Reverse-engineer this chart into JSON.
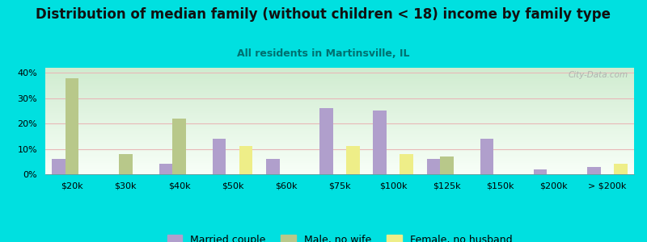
{
  "title": "Distribution of median family (without children < 18) income by family type",
  "subtitle": "All residents in Martinsville, IL",
  "categories": [
    "$20k",
    "$30k",
    "$40k",
    "$50k",
    "$60k",
    "$75k",
    "$100k",
    "$125k",
    "$150k",
    "$200k",
    "> $200k"
  ],
  "married_couple": [
    6,
    0,
    4,
    14,
    6,
    26,
    25,
    6,
    14,
    2,
    3
  ],
  "male_no_wife": [
    38,
    8,
    22,
    0,
    0,
    0,
    0,
    7,
    0,
    0,
    0
  ],
  "female_no_husband": [
    0,
    0,
    0,
    11,
    0,
    11,
    8,
    0,
    0,
    0,
    4
  ],
  "married_color": "#b09fcc",
  "male_color": "#b8c88a",
  "female_color": "#eeee88",
  "bg_color": "#00e0e0",
  "plot_bg_top": "#f8fff8",
  "plot_bg_bottom": "#d0ecd0",
  "ylim": [
    0,
    42
  ],
  "yticks": [
    0,
    10,
    20,
    30,
    40
  ],
  "ytick_labels": [
    "0%",
    "10%",
    "20%",
    "30%",
    "40%"
  ],
  "watermark": "City-Data.com",
  "title_fontsize": 12,
  "subtitle_fontsize": 9,
  "bar_width": 0.25,
  "grid_color": "#e8b8b8",
  "tick_fontsize": 8
}
